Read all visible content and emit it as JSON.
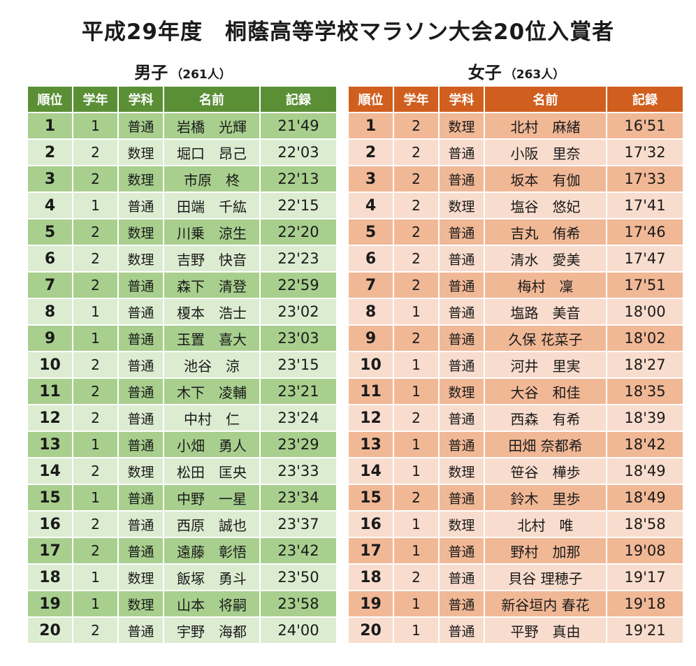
{
  "title": "平成29年度　桐蔭高等学校マラソン大会20位入賞者",
  "headers": [
    "順位",
    "学年",
    "学科",
    "名前",
    "記録"
  ],
  "boys": {
    "label": "男子",
    "count": "（261人）",
    "rows": [
      [
        "1",
        "1",
        "普通",
        "岩橋　光輝",
        "21'49"
      ],
      [
        "2",
        "2",
        "数理",
        "堀口　昂己",
        "22'03"
      ],
      [
        "3",
        "2",
        "数理",
        "市原　柊",
        "22'13"
      ],
      [
        "4",
        "1",
        "普通",
        "田端　千紘",
        "22'15"
      ],
      [
        "5",
        "2",
        "数理",
        "川乗　涼生",
        "22'20"
      ],
      [
        "6",
        "2",
        "数理",
        "吉野　快音",
        "22'23"
      ],
      [
        "7",
        "2",
        "普通",
        "森下　清登",
        "22'59"
      ],
      [
        "8",
        "1",
        "普通",
        "榎本　浩士",
        "23'02"
      ],
      [
        "9",
        "1",
        "普通",
        "玉置　喜大",
        "23'03"
      ],
      [
        "10",
        "2",
        "普通",
        "池谷　涼",
        "23'15"
      ],
      [
        "11",
        "2",
        "普通",
        "木下　凌輔",
        "23'21"
      ],
      [
        "12",
        "2",
        "普通",
        "中村　仁",
        "23'24"
      ],
      [
        "13",
        "1",
        "普通",
        "小畑　勇人",
        "23'29"
      ],
      [
        "14",
        "2",
        "数理",
        "松田　匡央",
        "23'33"
      ],
      [
        "15",
        "1",
        "普通",
        "中野　一星",
        "23'34"
      ],
      [
        "16",
        "2",
        "普通",
        "西原　誠也",
        "23'37"
      ],
      [
        "17",
        "2",
        "普通",
        "遠藤　彰悟",
        "23'42"
      ],
      [
        "18",
        "1",
        "数理",
        "飯塚　勇斗",
        "23'50"
      ],
      [
        "19",
        "1",
        "数理",
        "山本　将嗣",
        "23'58"
      ],
      [
        "20",
        "2",
        "普通",
        "宇野　海都",
        "24'00"
      ]
    ]
  },
  "girls": {
    "label": "女子",
    "count": "（263人）",
    "rows": [
      [
        "1",
        "2",
        "数理",
        "北村　麻緒",
        "16'51"
      ],
      [
        "2",
        "2",
        "普通",
        "小阪　里奈",
        "17'32"
      ],
      [
        "3",
        "2",
        "普通",
        "坂本　有伽",
        "17'33"
      ],
      [
        "4",
        "2",
        "数理",
        "塩谷　悠妃",
        "17'41"
      ],
      [
        "5",
        "2",
        "普通",
        "吉丸　侑希",
        "17'46"
      ],
      [
        "6",
        "2",
        "普通",
        "清水　愛美",
        "17'47"
      ],
      [
        "7",
        "2",
        "普通",
        "梅村　凜",
        "17'51"
      ],
      [
        "8",
        "1",
        "普通",
        "塩路　美音",
        "18'00"
      ],
      [
        "9",
        "2",
        "普通",
        "久保 花菜子",
        "18'02"
      ],
      [
        "10",
        "1",
        "普通",
        "河井　里実",
        "18'27"
      ],
      [
        "11",
        "1",
        "数理",
        "大谷　和佳",
        "18'35"
      ],
      [
        "12",
        "2",
        "普通",
        "西森　有希",
        "18'39"
      ],
      [
        "13",
        "1",
        "普通",
        "田畑 奈都希",
        "18'42"
      ],
      [
        "14",
        "1",
        "数理",
        "笹谷　樺歩",
        "18'49"
      ],
      [
        "15",
        "2",
        "普通",
        "鈴木　里歩",
        "18'49"
      ],
      [
        "16",
        "1",
        "数理",
        "北村　唯",
        "18'58"
      ],
      [
        "17",
        "1",
        "普通",
        "野村　加那",
        "19'08"
      ],
      [
        "18",
        "2",
        "普通",
        "貝谷 理穂子",
        "19'17"
      ],
      [
        "19",
        "1",
        "普通",
        "新谷垣内 春花",
        "19'18"
      ],
      [
        "20",
        "1",
        "普通",
        "平野　真由",
        "19'21"
      ]
    ]
  }
}
